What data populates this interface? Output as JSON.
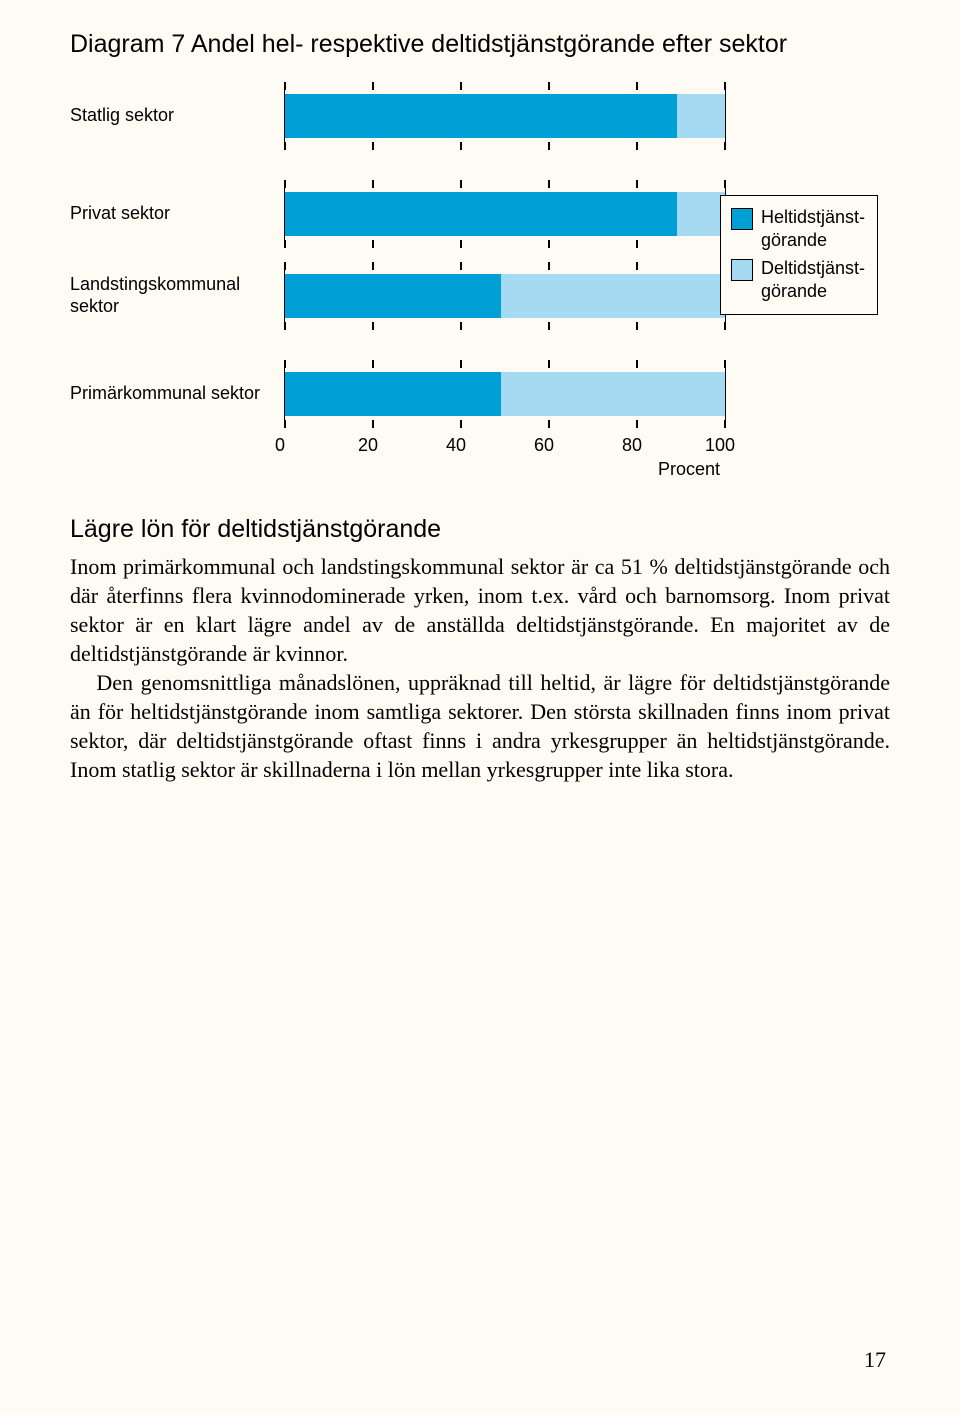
{
  "chart": {
    "title": "Diagram 7 Andel hel- respektive deltidstjänstgörande efter sektor",
    "type": "stacked-horizontal-bar",
    "xlim": [
      0,
      100
    ],
    "xtick_step": 20,
    "xticks": [
      0,
      20,
      40,
      60,
      80,
      100
    ],
    "xaxis_title": "Procent",
    "bar_bg_color": "#a6daf2",
    "bar_fg_color": "#00a0d6",
    "border_color": "#000000",
    "background_color": "#fdfbf4",
    "categories": [
      {
        "label": "Statlig sektor",
        "heltid": 89,
        "gap_after": "big"
      },
      {
        "label": "Privat sektor",
        "heltid": 89,
        "gap_after": "normal"
      },
      {
        "label": "Landstingskommunal sektor",
        "heltid": 49,
        "gap_after": "big"
      },
      {
        "label": "Primärkommunal sektor",
        "heltid": 49,
        "gap_after": "none"
      }
    ],
    "legend": {
      "items": [
        {
          "label_line1": "Heltidstjänst-",
          "label_line2": "görande",
          "color": "#00a0d6"
        },
        {
          "label_line1": "Deltidstjänst-",
          "label_line2": "görande",
          "color": "#a6daf2"
        }
      ]
    }
  },
  "subtitle": "Lägre lön för deltidstjänstgörande",
  "paragraphs": [
    "Inom primärkommunal och landstingskommunal sektor är ca 51 % deltidstjänstgörande och där återfinns flera kvinnodominerade yrken, inom t.ex. vård och barnomsorg. Inom privat sektor är en klart lägre andel av de anställda deltidstjänstgörande. En majoritet av de deltidstjänstgörande är kvinnor.",
    "Den genomsnittliga månadslönen, uppräknad till heltid, är lägre för deltidstjänstgörande än för heltidstjänstgörande inom samtliga sektorer. Den största skillnaden finns inom privat sektor, där deltidstjänstgörande oftast finns i andra yrkesgrupper än heltidstjänstgörande. Inom statlig sektor är skillnaderna i lön mellan yrkesgrupper inte lika stora."
  ],
  "page_number": "17"
}
